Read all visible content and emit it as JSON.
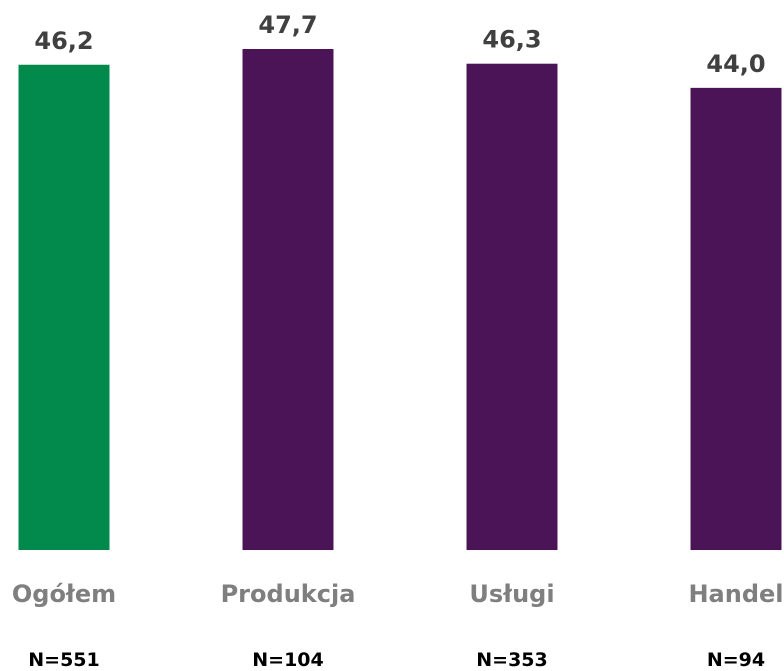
{
  "chart_data": {
    "type": "bar",
    "title": "",
    "xlabel": "",
    "ylabel": "",
    "categories": [
      "Ogółem",
      "Produkcja",
      "Usługi",
      "Handel"
    ],
    "values": [
      46.2,
      47.7,
      46.3,
      44.0
    ],
    "value_labels": [
      "46,2",
      "47,7",
      "46,3",
      "44,0"
    ],
    "sample_sizes": [
      "N=551",
      "N=104",
      "N=353",
      "N=94"
    ],
    "ylim": [
      0,
      47.7
    ],
    "grid": false,
    "legend": "none",
    "colors": [
      "#028a4c",
      "#4b1456",
      "#4b1456",
      "#4b1456"
    ]
  }
}
